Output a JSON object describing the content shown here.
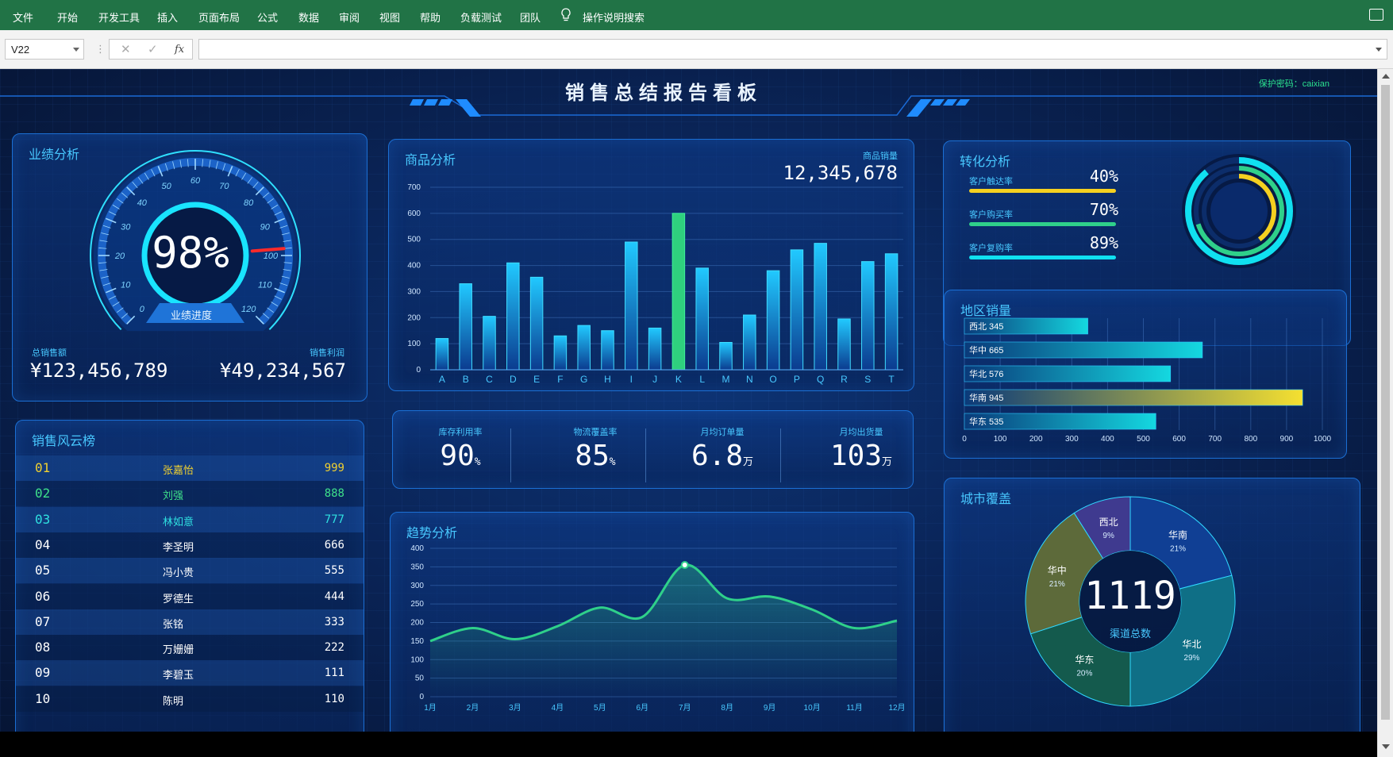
{
  "ribbon": {
    "tabs": [
      "文件",
      "开始",
      "开发工具",
      "插入",
      "页面布局",
      "公式",
      "数据",
      "审阅",
      "视图",
      "帮助",
      "负载测试",
      "团队"
    ],
    "search": "操作说明搜索"
  },
  "formula": {
    "cell": "V22",
    "value": ""
  },
  "dashboard": {
    "title": "销售总结报告看板",
    "protect": "保护密码：caixian"
  },
  "performance": {
    "title": "业绩分析",
    "gauge_value": "98%",
    "gauge_fraction": 0.98,
    "gauge_ticks": [
      "0",
      "10",
      "20",
      "30",
      "40",
      "50",
      "60",
      "70",
      "80",
      "90",
      "100",
      "110",
      "120"
    ],
    "gauge_label": "业绩进度",
    "total_sales_label": "总销售额",
    "total_sales": "¥123,456,789",
    "profit_label": "销售利润",
    "profit": "¥49,234,567"
  },
  "ranking": {
    "title": "销售风云榜",
    "rows": [
      {
        "rank": "01",
        "name": "张嘉怡",
        "value": "999"
      },
      {
        "rank": "02",
        "name": "刘强",
        "value": "888"
      },
      {
        "rank": "03",
        "name": "林如意",
        "value": "777"
      },
      {
        "rank": "04",
        "name": "李圣明",
        "value": "666"
      },
      {
        "rank": "05",
        "name": "冯小贵",
        "value": "555"
      },
      {
        "rank": "06",
        "name": "罗德生",
        "value": "444"
      },
      {
        "rank": "07",
        "name": "张铭",
        "value": "333"
      },
      {
        "rank": "08",
        "name": "万姗姗",
        "value": "222"
      },
      {
        "rank": "09",
        "name": "李碧玉",
        "value": "111"
      },
      {
        "rank": "10",
        "name": "陈明",
        "value": "110"
      }
    ],
    "colors": [
      "#f0d030",
      "#3ee08a",
      "#2fe0e0",
      "#ffffff"
    ]
  },
  "product": {
    "title": "商品分析",
    "sales_label": "商品销量",
    "sales_value": "12,345,678"
  },
  "kpis": [
    {
      "label": "库存利用率",
      "value": "90",
      "unit": "%"
    },
    {
      "label": "物流覆盖率",
      "value": "85",
      "unit": "%"
    },
    {
      "label": "月均订单量",
      "value": "6.8",
      "unit": "万"
    },
    {
      "label": "月均出货量",
      "value": "103",
      "unit": "万"
    }
  ],
  "trend": {
    "title": "趋势分析"
  },
  "conversion": {
    "title": "转化分析",
    "items": [
      {
        "label": "客户触达率",
        "value": "40%",
        "fraction": 0.4,
        "color": "#f5d020"
      },
      {
        "label": "客户购买率",
        "value": "70%",
        "fraction": 0.7,
        "color": "#2fd08a"
      },
      {
        "label": "客户复购率",
        "value": "89%",
        "fraction": 0.89,
        "color": "#10e0f0"
      }
    ]
  },
  "region": {
    "title": "地区销量"
  },
  "city": {
    "title": "城市覆盖",
    "center_value": "1119",
    "center_label": "渠道总数"
  },
  "chart_data": [
    {
      "type": "bar",
      "title": "商品分析",
      "categories": [
        "A",
        "B",
        "C",
        "D",
        "E",
        "F",
        "G",
        "H",
        "I",
        "J",
        "K",
        "L",
        "M",
        "N",
        "O",
        "P",
        "Q",
        "R",
        "S",
        "T"
      ],
      "values": [
        120,
        330,
        205,
        410,
        355,
        130,
        170,
        150,
        490,
        160,
        600,
        390,
        105,
        210,
        380,
        460,
        485,
        195,
        415,
        445
      ],
      "highlight_index": 10,
      "ylim": [
        0,
        700
      ],
      "yticks": [
        0,
        100,
        200,
        300,
        400,
        500,
        600,
        700
      ]
    },
    {
      "type": "line",
      "title": "趋势分析",
      "categories": [
        "1月",
        "2月",
        "3月",
        "4月",
        "5月",
        "6月",
        "7月",
        "8月",
        "9月",
        "10月",
        "11月",
        "12月"
      ],
      "values": [
        150,
        185,
        155,
        190,
        240,
        215,
        355,
        265,
        270,
        235,
        185,
        205
      ],
      "ylim": [
        0,
        400
      ],
      "yticks": [
        0,
        50,
        100,
        150,
        200,
        250,
        300,
        350,
        400
      ]
    },
    {
      "type": "bar",
      "orientation": "horizontal",
      "title": "地区销量",
      "categories": [
        "西北",
        "华中",
        "华北",
        "华南",
        "华东"
      ],
      "values": [
        345,
        665,
        576,
        945,
        535
      ],
      "labels": [
        "西北 345",
        "华中 665",
        "华北 576",
        "华南 945",
        "华东 535"
      ],
      "xlim": [
        0,
        1000
      ],
      "xticks": [
        0,
        100,
        200,
        300,
        400,
        500,
        600,
        700,
        800,
        900,
        1000
      ]
    },
    {
      "type": "pie",
      "title": "城市覆盖",
      "categories": [
        "华南",
        "华北",
        "华东",
        "华中",
        "西北"
      ],
      "values": [
        21,
        29,
        20,
        21,
        9
      ],
      "labels": [
        "21%",
        "29%",
        "20%",
        "21%",
        "9%"
      ],
      "colors": [
        "#103f94",
        "#0f6f86",
        "#145a4d",
        "#5d6a3a",
        "#3f3a8f"
      ]
    }
  ]
}
